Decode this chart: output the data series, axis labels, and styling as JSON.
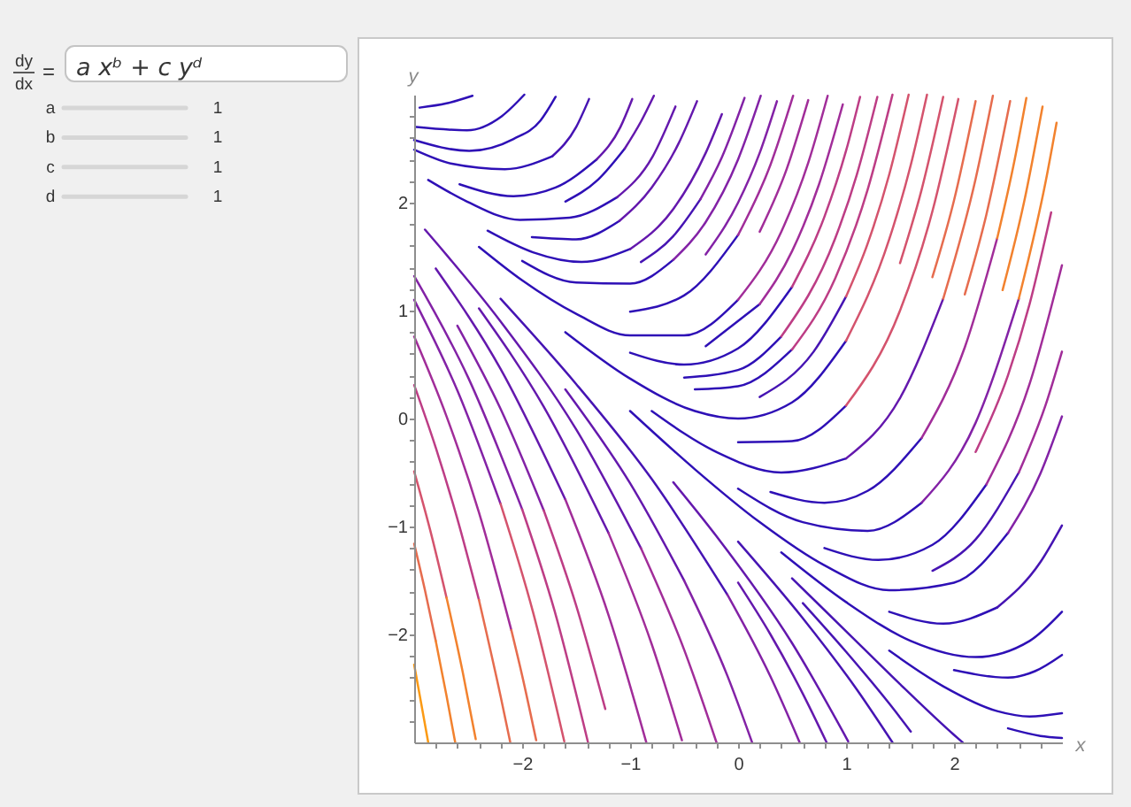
{
  "chart_data": [
    {
      "type": "other",
      "annotations": [
        "dy",
        "dx",
        "=",
        "a xᵇ + c yᵈ",
        "a",
        "1",
        "b",
        "1",
        "c",
        "1",
        "d",
        "1"
      ]
    },
    {
      "type": "line",
      "xlabel": "x",
      "ylabel": "y",
      "xlim": [
        -3,
        3
      ],
      "ylim": [
        -3,
        3
      ],
      "xticks": [
        {
          "value": -2.8,
          "label": null
        },
        {
          "value": -2.6,
          "label": null
        },
        {
          "value": -2.4,
          "label": null
        },
        {
          "value": -2.2,
          "label": null
        },
        {
          "value": -2,
          "label": "−2"
        },
        {
          "value": -1.8,
          "label": null
        },
        {
          "value": -1.6,
          "label": null
        },
        {
          "value": -1.4,
          "label": null
        },
        {
          "value": -1.2,
          "label": null
        },
        {
          "value": -1,
          "label": "−1"
        },
        {
          "value": -0.8,
          "label": null
        },
        {
          "value": -0.6,
          "label": null
        },
        {
          "value": -0.4,
          "label": null
        },
        {
          "value": -0.2,
          "label": null
        },
        0,
        {
          "value": 0.2,
          "label": null
        },
        {
          "value": 0.4,
          "label": null
        },
        {
          "value": 0.6,
          "label": null
        },
        {
          "value": 0.8,
          "label": null
        },
        1,
        {
          "value": 1.2,
          "label": null
        },
        {
          "value": 1.4,
          "label": null
        },
        {
          "value": 1.6,
          "label": null
        },
        {
          "value": 1.8,
          "label": null
        },
        2,
        {
          "value": 2.2,
          "label": null
        },
        {
          "value": 2.4,
          "label": null
        },
        {
          "value": 2.6,
          "label": null
        },
        {
          "value": 2.8,
          "label": null
        }
      ],
      "yticks": [
        {
          "value": -2.8,
          "label": null
        },
        {
          "value": -2.6,
          "label": null
        },
        {
          "value": -2.4,
          "label": null
        },
        {
          "value": -2.2,
          "label": null
        },
        {
          "value": -2,
          "label": "−2"
        },
        {
          "value": -1.8,
          "label": null
        },
        {
          "value": -1.6,
          "label": null
        },
        {
          "value": -1.4,
          "label": null
        },
        {
          "value": -1.2,
          "label": null
        },
        {
          "value": -1,
          "label": "−1"
        },
        {
          "value": -0.8,
          "label": null
        },
        {
          "value": -0.6,
          "label": null
        },
        {
          "value": -0.4,
          "label": null
        },
        {
          "value": -0.2,
          "label": null
        },
        0,
        {
          "value": 0.2,
          "label": null
        },
        {
          "value": 0.4,
          "label": null
        },
        {
          "value": 0.6,
          "label": null
        },
        {
          "value": 0.8,
          "label": null
        },
        1,
        {
          "value": 1.2,
          "label": null
        },
        {
          "value": 1.4,
          "label": null
        },
        {
          "value": 1.6,
          "label": null
        },
        {
          "value": 1.8,
          "label": null
        },
        2,
        {
          "value": 2.2,
          "label": null
        },
        {
          "value": 2.4,
          "label": null
        },
        {
          "value": 2.6,
          "label": null
        },
        {
          "value": 2.8,
          "label": null
        }
      ],
      "series": [
        {
          "color": "#2e10b6",
          "x": [
            -2.95,
            -2.7,
            -2.46
          ],
          "values": [
            2.88,
            2.92,
            2.99
          ]
        },
        {
          "color": "#2e10b6",
          "x": [
            -2.98,
            -2.51,
            -2.19,
            -1.98
          ],
          "values": [
            2.7,
            2.67,
            2.8,
            3.0
          ]
        },
        {
          "color": "#2e10b6",
          "x": [
            -3.0,
            -2.49,
            -2.08,
            -1.83,
            -1.69
          ],
          "values": [
            2.58,
            2.48,
            2.59,
            2.76,
            2.98
          ]
        },
        {
          "color": "#2e10b6",
          "x": [
            -3.0,
            -2.65,
            -2.16,
            -1.72
          ],
          "values": [
            2.49,
            2.36,
            2.31,
            2.43
          ]
        },
        {
          "color": "#4614b3",
          "x": [
            -1.72,
            -1.5,
            -1.38
          ],
          "values": [
            2.43,
            2.7,
            2.96
          ]
        },
        {
          "color": "#2e10b6",
          "x": [
            -2.58,
            -2.08,
            -1.69,
            -1.31
          ],
          "values": [
            2.17,
            2.06,
            2.14,
            2.4
          ]
        },
        {
          "color": "#6418ad",
          "x": [
            -1.31,
            -1.09,
            -0.98
          ],
          "values": [
            2.4,
            2.7,
            2.96
          ]
        },
        {
          "color": "#2e10b6",
          "x": [
            -1.6,
            -1.3,
            -1.05
          ],
          "values": [
            2.01,
            2.21,
            2.5
          ]
        },
        {
          "color": "#6418ad",
          "x": [
            -1.05,
            -0.9,
            -0.78
          ],
          "values": [
            2.5,
            2.75,
            2.99
          ]
        },
        {
          "color": "#2e10b6",
          "x": [
            -2.87,
            -2.51,
            -2.02,
            -1.56,
            -1.12
          ],
          "values": [
            2.21,
            2.01,
            1.84,
            1.86,
            2.05
          ]
        },
        {
          "color": "#6418ad",
          "x": [
            -1.12,
            -0.79,
            -0.58
          ],
          "values": [
            2.05,
            2.43,
            2.89
          ]
        },
        {
          "color": "#2e10b6",
          "x": [
            -1.91,
            -1.5,
            -1.1
          ],
          "values": [
            1.68,
            1.66,
            1.83
          ]
        },
        {
          "color": "#6418ad",
          "x": [
            -1.1,
            -0.8,
            -0.55,
            -0.38
          ],
          "values": [
            1.83,
            2.14,
            2.55,
            2.94
          ]
        },
        {
          "color": "#2e10b6",
          "x": [
            -2.32,
            -1.9,
            -1.45,
            -1.0
          ],
          "values": [
            1.74,
            1.54,
            1.45,
            1.57
          ]
        },
        {
          "color": "#6418ad",
          "x": [
            -1.0,
            -0.6,
            -0.3,
            -0.15
          ],
          "values": [
            1.57,
            1.94,
            2.46,
            2.82
          ]
        },
        {
          "color": "#4614b3",
          "x": [
            -0.9,
            -0.6,
            -0.35
          ],
          "values": [
            1.45,
            1.69,
            2.03
          ]
        },
        {
          "color": "#8322a6",
          "x": [
            -0.35,
            -0.15,
            0.06
          ],
          "values": [
            2.03,
            2.42,
            2.97
          ]
        },
        {
          "color": "#2e10b6",
          "x": [
            -2.0,
            -1.5,
            -1.0,
            -0.6
          ],
          "values": [
            1.46,
            1.26,
            1.25,
            1.47
          ]
        },
        {
          "color": "#8322a6",
          "x": [
            -0.6,
            -0.3,
            0,
            0.21
          ],
          "values": [
            1.47,
            1.82,
            2.4,
            2.99
          ]
        },
        {
          "color": "#8322a6",
          "x": [
            -0.3,
            0,
            0.2,
            0.36
          ],
          "values": [
            1.52,
            2.0,
            2.46,
            2.94
          ]
        },
        {
          "color": "#2e10b6",
          "x": [
            -1.0,
            -0.5,
            0
          ],
          "values": [
            0.99,
            1.14,
            1.7
          ]
        },
        {
          "color": "#a12d99",
          "x": [
            0,
            0.3,
            0.51
          ],
          "values": [
            1.7,
            2.35,
            2.99
          ]
        },
        {
          "color": "#a12d99",
          "x": [
            0.2,
            0.45,
            0.65
          ],
          "values": [
            1.73,
            2.31,
            2.95
          ]
        },
        {
          "color": "#2e10b6",
          "x": [
            -2.4,
            -2.0,
            -1.5,
            -1.0,
            -0.5,
            0
          ],
          "values": [
            1.59,
            1.28,
            0.97,
            0.77,
            0.77,
            1.1
          ]
        },
        {
          "color": "#a12d99",
          "x": [
            0,
            0.4,
            0.65,
            0.83
          ],
          "values": [
            1.1,
            1.73,
            2.37,
            2.99
          ]
        },
        {
          "color": "#2e10b6",
          "x": [
            -0.3,
            0.2
          ],
          "values": [
            0.67,
            1.06
          ]
        },
        {
          "color": "#a12d99",
          "x": [
            0.2,
            0.5,
            0.75,
            0.97
          ],
          "values": [
            1.06,
            1.55,
            2.17,
            2.91
          ]
        },
        {
          "color": "#2e10b6",
          "x": [
            -1.0,
            -0.5,
            0,
            0.5
          ],
          "values": [
            0.61,
            0.5,
            0.65,
            1.22
          ]
        },
        {
          "color": "#bd3d85",
          "x": [
            0.5,
            0.8,
            1.0,
            1.13
          ],
          "values": [
            1.22,
            1.87,
            2.48,
            2.98
          ]
        },
        {
          "color": "#2e10b6",
          "x": [
            -0.5,
            0,
            0.4
          ],
          "values": [
            0.38,
            0.45,
            0.76
          ]
        },
        {
          "color": "#bd3d85",
          "x": [
            0.4,
            0.9,
            1.1,
            1.29
          ],
          "values": [
            0.76,
            1.67,
            2.26,
            2.98
          ]
        },
        {
          "color": "#2e10b6",
          "x": [
            -0.4,
            0,
            0.5
          ],
          "values": [
            0.27,
            0.3,
            0.64
          ]
        },
        {
          "color": "#bd3d85",
          "x": [
            0.5,
            0.9,
            1.2,
            1.43
          ],
          "values": [
            0.64,
            1.3,
            2.12,
            3.0
          ]
        },
        {
          "color": "#4614b3",
          "x": [
            0.2,
            0.7,
            1.0
          ],
          "values": [
            0.2,
            0.62,
            1.13
          ]
        },
        {
          "color": "#d4536d",
          "x": [
            1.0,
            1.2,
            1.4,
            1.58
          ],
          "values": [
            1.13,
            1.62,
            2.26,
            3.0
          ]
        },
        {
          "color": "#2e10b6",
          "x": [
            -1.6,
            -1.0,
            -0.4,
            0,
            0.5,
            1.0
          ],
          "values": [
            0.8,
            0.37,
            0.07,
            0,
            0.15,
            0.72
          ]
        },
        {
          "color": "#d4536d",
          "x": [
            1.0,
            1.4,
            1.6,
            1.75
          ],
          "values": [
            0.72,
            1.66,
            2.35,
            3.0
          ]
        },
        {
          "color": "#d4536d",
          "x": [
            1.5,
            1.7,
            1.9
          ],
          "values": [
            1.44,
            2.12,
            2.98
          ]
        },
        {
          "color": "#2e10b6",
          "x": [
            0,
            0.5,
            1.0
          ],
          "values": [
            -0.22,
            -0.21,
            0.12
          ]
        },
        {
          "color": "#d4536d",
          "x": [
            1.0,
            1.5,
            1.8,
            2.04
          ],
          "values": [
            0.12,
            1.0,
            1.92,
            2.96
          ]
        },
        {
          "color": "#e66c4e",
          "x": [
            1.8,
            2.0,
            2.2
          ],
          "values": [
            1.31,
            2.02,
            2.94
          ]
        },
        {
          "color": "#2e10b6",
          "x": [
            -0.8,
            -0.2,
            0.4,
            1.0
          ],
          "values": [
            0.07,
            -0.31,
            -0.5,
            -0.37
          ]
        },
        {
          "color": "#6418ad",
          "x": [
            1.0,
            1.5,
            1.9
          ],
          "values": [
            -0.37,
            0.19,
            1.11
          ]
        },
        {
          "color": "#e66c4e",
          "x": [
            1.9,
            2.2,
            2.36
          ],
          "values": [
            1.11,
            2.22,
            2.99
          ]
        },
        {
          "color": "#e66c4e",
          "x": [
            2.1,
            2.3,
            2.52
          ],
          "values": [
            1.15,
            1.89,
            2.94
          ]
        },
        {
          "color": "#2e10b6",
          "x": [
            0.3,
            0.8,
            1.2,
            1.7
          ],
          "values": [
            -0.68,
            -0.78,
            -0.67,
            -0.18
          ]
        },
        {
          "color": "#a12d99",
          "x": [
            1.7,
            2.1,
            2.4
          ],
          "values": [
            -0.18,
            0.66,
            1.67
          ]
        },
        {
          "color": "#f2822e",
          "x": [
            2.4,
            2.55,
            2.67
          ],
          "values": [
            1.67,
            2.34,
            2.97
          ]
        },
        {
          "color": "#f2822e",
          "x": [
            2.45,
            2.65,
            2.82
          ],
          "values": [
            1.19,
            2.01,
            2.89
          ]
        },
        {
          "color": "#2e10b6",
          "x": [
            0,
            0.6,
            1.2,
            1.7
          ],
          "values": [
            -0.65,
            -0.96,
            -1.04,
            -0.78
          ]
        },
        {
          "color": "#8322a6",
          "x": [
            1.7,
            2.2,
            2.6
          ],
          "values": [
            -0.78,
            -0.04,
            1.11
          ]
        },
        {
          "color": "#f2822e",
          "x": [
            2.6,
            2.85,
            2.95
          ],
          "values": [
            1.11,
            2.2,
            2.74
          ]
        },
        {
          "color": "#bd3d85",
          "x": [
            2.2,
            2.5,
            2.7,
            2.9
          ],
          "values": [
            -0.31,
            0.4,
            1.06,
            1.91
          ]
        },
        {
          "color": "#2e10b6",
          "x": [
            0.8,
            1.3,
            1.8,
            2.3
          ],
          "values": [
            -1.2,
            -1.31,
            -1.17,
            -0.61
          ]
        },
        {
          "color": "#a12d99",
          "x": [
            2.3,
            2.7,
            3.0
          ],
          "values": [
            -0.61,
            0.32,
            1.42
          ]
        },
        {
          "color": "#4614b3",
          "x": [
            1.8,
            2.2,
            2.6
          ],
          "values": [
            -1.41,
            -1.12,
            -0.5
          ]
        },
        {
          "color": "#a12d99",
          "x": [
            2.6,
            2.85,
            3.0
          ],
          "values": [
            -0.5,
            0.13,
            0.62
          ]
        },
        {
          "color": "#2e10b6",
          "x": [
            -1.0,
            -0.4,
            0.2,
            0.8,
            1.4,
            2.0,
            2.5
          ],
          "values": [
            0.07,
            -0.47,
            -0.96,
            -1.36,
            -1.59,
            -1.52,
            -1.06
          ]
        },
        {
          "color": "#8322a6",
          "x": [
            2.5,
            2.8,
            3.0
          ],
          "values": [
            -1.06,
            -0.51,
            0.02
          ]
        },
        {
          "color": "#2e10b6",
          "x": [
            1.4,
            1.9,
            2.4
          ],
          "values": [
            -1.79,
            -1.9,
            -1.75
          ]
        },
        {
          "color": "#4614b3",
          "x": [
            2.4,
            2.8,
            3.0
          ],
          "values": [
            -1.75,
            -1.33,
            -0.99
          ]
        },
        {
          "color": "#2e10b6",
          "x": [
            0.4,
            1.0,
            1.6,
            2.2,
            2.7,
            3.0
          ],
          "values": [
            -1.24,
            -1.7,
            -2.06,
            -2.21,
            -2.06,
            -1.79
          ]
        },
        {
          "color": "#2e10b6",
          "x": [
            2.0,
            2.5,
            2.75,
            3.0
          ],
          "values": [
            -2.33,
            -2.4,
            -2.34,
            -2.19
          ]
        },
        {
          "color": "#2e10b6",
          "x": [
            1.4,
            1.9,
            2.4,
            2.7,
            3.0
          ],
          "values": [
            -2.15,
            -2.48,
            -2.71,
            -2.76,
            -2.73
          ]
        },
        {
          "color": "#2e10b6",
          "x": [
            2.5,
            2.8,
            3.0
          ],
          "values": [
            -2.87,
            -2.94,
            -2.96
          ]
        },
        {
          "color": "#4614b3",
          "x": [
            0.5,
            1.0,
            1.5,
            2.0,
            2.08
          ],
          "values": [
            -1.48,
            -1.97,
            -2.46,
            -2.93,
            -3.0
          ]
        },
        {
          "color": "#fb9a14",
          "x": [
            -3.0,
            -2.94,
            -2.87
          ],
          "values": [
            -2.28,
            -2.61,
            -3.0
          ]
        },
        {
          "color": "#e66c4e",
          "x": [
            -3.0,
            -2.9,
            -2.8
          ],
          "values": [
            -1.16,
            -1.59,
            -2.06
          ]
        },
        {
          "color": "#f2822e",
          "x": [
            -2.8,
            -2.7,
            -2.62
          ],
          "values": [
            -2.06,
            -2.57,
            -3.0
          ]
        },
        {
          "color": "#d4536d",
          "x": [
            -3.0,
            -2.85,
            -2.7
          ],
          "values": [
            -0.49,
            -1.04,
            -1.66
          ]
        },
        {
          "color": "#f2822e",
          "x": [
            -2.7,
            -2.55,
            -2.43
          ],
          "values": [
            -1.66,
            -2.35,
            -2.97
          ]
        },
        {
          "color": "#bd3d85",
          "x": [
            -3.0,
            -2.8,
            -2.6,
            -2.4
          ],
          "values": [
            0.31,
            -0.27,
            -0.93,
            -1.68
          ]
        },
        {
          "color": "#e66c4e",
          "x": [
            -2.4,
            -2.2,
            -2.11
          ],
          "values": [
            -1.68,
            -2.57,
            -3.0
          ]
        },
        {
          "color": "#a12d99",
          "x": [
            -3.0,
            -2.7,
            -2.4,
            -2.1
          ],
          "values": [
            0.76,
            0.02,
            -0.87,
            -1.96
          ]
        },
        {
          "color": "#e66c4e",
          "x": [
            -2.1,
            -2.0,
            -1.87
          ],
          "values": [
            -1.96,
            -2.38,
            -2.98
          ]
        },
        {
          "color": "#8322a6",
          "x": [
            -3.0,
            -2.6,
            -2.2
          ],
          "values": [
            1.1,
            0.26,
            -0.79
          ]
        },
        {
          "color": "#d4536d",
          "x": [
            -2.2,
            -1.9,
            -1.61
          ],
          "values": [
            -0.79,
            -1.79,
            -2.99
          ]
        },
        {
          "color": "#8322a6",
          "x": [
            -3.0,
            -2.5,
            -2.0
          ],
          "values": [
            1.32,
            0.38,
            -0.84
          ]
        },
        {
          "color": "#bd3d85",
          "x": [
            -2.0,
            -1.7,
            -1.39
          ],
          "values": [
            -0.84,
            -1.78,
            -3.0
          ]
        },
        {
          "color": "#8322a6",
          "x": [
            -2.6,
            -2.2,
            -1.8
          ],
          "values": [
            0.86,
            0.09,
            -0.85
          ]
        },
        {
          "color": "#bd3d85",
          "x": [
            -1.8,
            -1.5,
            -1.23
          ],
          "values": [
            -0.85,
            -1.73,
            -2.69
          ]
        },
        {
          "color": "#6418ad",
          "x": [
            -2.8,
            -2.2,
            -1.6
          ],
          "values": [
            1.39,
            0.46,
            -0.75
          ]
        },
        {
          "color": "#a12d99",
          "x": [
            -1.6,
            -1.2,
            -0.85
          ],
          "values": [
            -0.75,
            -1.82,
            -3.0
          ]
        },
        {
          "color": "#6418ad",
          "x": [
            -2.4,
            -1.8,
            -1.2
          ],
          "values": [
            1.02,
            0.11,
            -1.06
          ]
        },
        {
          "color": "#a12d99",
          "x": [
            -1.2,
            -0.8,
            -0.52
          ],
          "values": [
            -1.06,
            -2.09,
            -2.98
          ]
        },
        {
          "color": "#6418ad",
          "x": [
            -2.9,
            -2.2,
            -1.5,
            -0.9
          ],
          "values": [
            1.75,
            0.9,
            -0.1,
            -1.2
          ]
        },
        {
          "color": "#a12d99",
          "x": [
            -0.9,
            -0.5,
            -0.2
          ],
          "values": [
            -1.2,
            -2.14,
            -3.0
          ]
        },
        {
          "color": "#6418ad",
          "x": [
            -1.6,
            -1.0,
            -0.5
          ],
          "values": [
            0.27,
            -0.6,
            -1.5
          ]
        },
        {
          "color": "#8322a6",
          "x": [
            -0.5,
            -0.1,
            0.13
          ],
          "values": [
            -1.5,
            -2.38,
            -3.0
          ]
        },
        {
          "color": "#4614b3",
          "x": [
            -2.2,
            -1.5,
            -0.8,
            -0.1
          ],
          "values": [
            1.11,
            0.32,
            -0.56,
            -1.63
          ]
        },
        {
          "color": "#8322a6",
          "x": [
            -0.1,
            0.3,
            0.57
          ],
          "values": [
            -1.63,
            -2.39,
            -3.0
          ]
        },
        {
          "color": "#6418ad",
          "x": [
            0,
            0.3,
            0.6,
            0.82
          ],
          "values": [
            -1.52,
            -2.0,
            -2.55,
            -3.0
          ]
        },
        {
          "color": "#6418ad",
          "x": [
            -0.6,
            -0.2,
            0.5,
            1.02
          ],
          "values": [
            -0.59,
            -1.09,
            -2.08,
            -2.99
          ]
        },
        {
          "color": "#4614b3",
          "x": [
            0,
            0.6,
            1.1,
            1.43
          ],
          "values": [
            -1.14,
            -1.85,
            -2.51,
            -3.0
          ]
        },
        {
          "color": "#4614b3",
          "x": [
            0.6,
            1.0,
            1.4,
            1.6
          ],
          "values": [
            -1.71,
            -2.16,
            -2.64,
            -2.9
          ]
        }
      ]
    }
  ]
}
